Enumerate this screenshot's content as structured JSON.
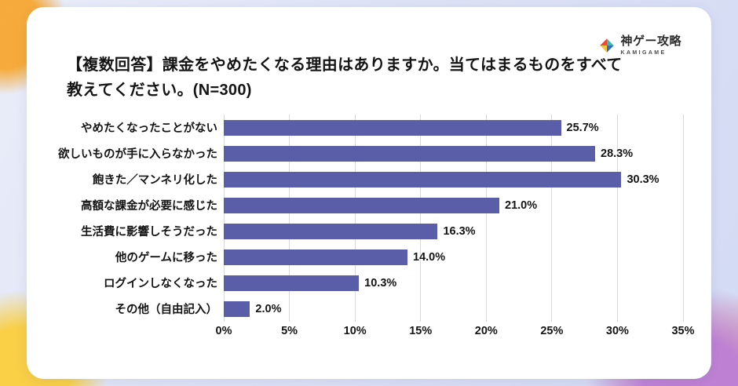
{
  "logo": {
    "name": "神ゲー攻略",
    "subtitle": "KAMIGAME"
  },
  "title": {
    "text": "【複数回答】課金をやめたくなる理由はありますか。当てはまるものをすべて教えてください。(N=300)"
  },
  "chart_data": {
    "type": "bar",
    "orientation": "horizontal",
    "title": "",
    "categories": [
      "やめたくなったことがない",
      "欲しいものが手に入らなかった",
      "飽きた／マンネリ化した",
      "高額な課金が必要に感じた",
      "生活費に影響しそうだった",
      "他のゲームに移った",
      "ログインしなくなった",
      "その他（自由記入）"
    ],
    "values": [
      25.7,
      28.3,
      30.3,
      21.0,
      16.3,
      14.0,
      10.3,
      2.0
    ],
    "value_labels": [
      "25.7%",
      "28.3%",
      "30.3%",
      "21.0%",
      "16.3%",
      "14.0%",
      "10.3%",
      "2.0%"
    ],
    "xlim": [
      0,
      35
    ],
    "x_tick_step": 5,
    "x_ticks": [
      "0%",
      "5%",
      "10%",
      "15%",
      "20%",
      "25%",
      "30%",
      "35%"
    ],
    "grid": true,
    "legend": false,
    "bar_color": "#5a5ea8",
    "grid_color": "#d8d8d8",
    "text_color": "#141414"
  }
}
